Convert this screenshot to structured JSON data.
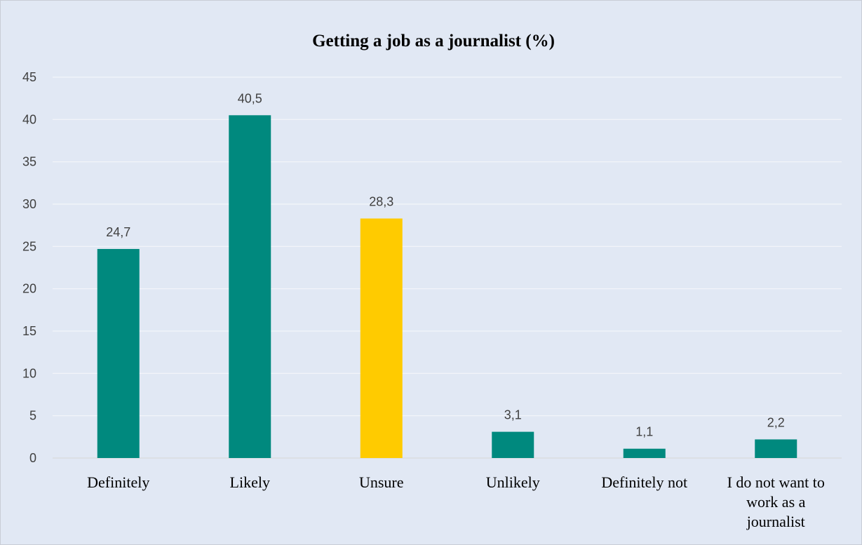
{
  "chart_data": {
    "type": "bar",
    "title": "Getting a job as a journalist (%)",
    "xlabel": "",
    "ylabel": "",
    "categories": [
      [
        "Definitely"
      ],
      [
        "Likely"
      ],
      [
        "Unsure"
      ],
      [
        "Unlikely"
      ],
      [
        "Definitely not"
      ],
      [
        "I do not want to",
        "work as a",
        "journalist"
      ]
    ],
    "values": [
      24.7,
      40.5,
      28.3,
      3.1,
      1.1,
      2.2
    ],
    "value_labels": [
      "24,7",
      "40,5",
      "28,3",
      "3,1",
      "1,1",
      "2,2"
    ],
    "ylim": [
      0,
      45
    ],
    "yticks": [
      0,
      5,
      10,
      15,
      20,
      25,
      30,
      35,
      40,
      45
    ],
    "grid": true,
    "legend": "none",
    "colors": {
      "background": "#E1E8F4",
      "border": "#C8CDD6",
      "gridline": "#F4F6FA",
      "axis": "#D9D9D9",
      "bars": [
        "#00897E",
        "#00897E",
        "#FFCB00",
        "#00897E",
        "#00897E",
        "#00897E"
      ]
    }
  }
}
